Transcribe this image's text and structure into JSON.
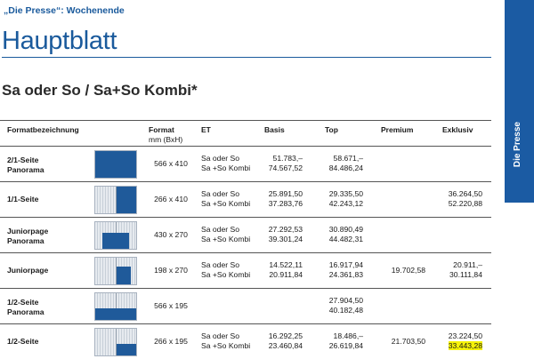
{
  "kicker": "„Die Presse“: Wochenende",
  "title": "Hauptblatt",
  "subtitle": "Sa oder So / Sa+So Kombi*",
  "side_tab": "Die Presse",
  "columns": {
    "name": "Formatbezeichnung",
    "format": "Format",
    "format_sub": "mm (BxH)",
    "et": "ET",
    "basis": "Basis",
    "top": "Top",
    "premium": "Premium",
    "exklusiv": "Exklusiv"
  },
  "rows": [
    {
      "name1": "2/1-Seite",
      "name2": "Panorama",
      "format": "566 x 410",
      "et1": "Sa oder So",
      "et2": "Sa +So Kombi",
      "basis1": "51.783,–",
      "basis2": "74.567,52",
      "top1": "58.671,–",
      "top2": "84.486,24",
      "premium": "",
      "exkl1": "",
      "exkl2": ""
    },
    {
      "name1": "1/1-Seite",
      "name2": "",
      "format": "266 x 410",
      "et1": "Sa oder So",
      "et2": "Sa +So Kombi",
      "basis1": "25.891,50",
      "basis2": "37.283,76",
      "top1": "29.335,50",
      "top2": "42.243,12",
      "premium": "",
      "exkl1": "36.264,50",
      "exkl2": "52.220,88"
    },
    {
      "name1": "Juniorpage",
      "name2": "Panorama",
      "format": "430 x 270",
      "et1": "Sa oder So",
      "et2": "Sa +So Kombi",
      "basis1": "27.292,53",
      "basis2": "39.301,24",
      "top1": "30.890,49",
      "top2": "44.482,31",
      "premium": "",
      "exkl1": "",
      "exkl2": ""
    },
    {
      "name1": "Juniorpage",
      "name2": "",
      "format": "198 x 270",
      "et1": "Sa oder So",
      "et2": "Sa +So Kombi",
      "basis1": "14.522,11",
      "basis2": "20.911,84",
      "top1": "16.917,94",
      "top2": "24.361,83",
      "premium": "19.702,58",
      "exkl1": "20.911,–",
      "exkl2": "30.111,84"
    },
    {
      "name1": "1/2-Seite",
      "name2": "Panorama",
      "format": "566 x 195",
      "et1": "",
      "et2": "",
      "basis1": "",
      "basis2": "",
      "top1": "27.904,50",
      "top2": "40.182,48",
      "premium": "",
      "exkl1": "",
      "exkl2": ""
    },
    {
      "name1": "1/2-Seite",
      "name2": "",
      "format": "266 x 195",
      "et1": "Sa oder So",
      "et2": "Sa +So Kombi",
      "basis1": "16.292,25",
      "basis2": "23.460,84",
      "top1": "18.486,–",
      "top2": "26.619,84",
      "premium": "21.703,50",
      "exkl1": "23.224,50",
      "exkl2": "33.443,28"
    }
  ],
  "colors": {
    "brand": "#1b5ba3",
    "highlight": "#f5f20a"
  }
}
